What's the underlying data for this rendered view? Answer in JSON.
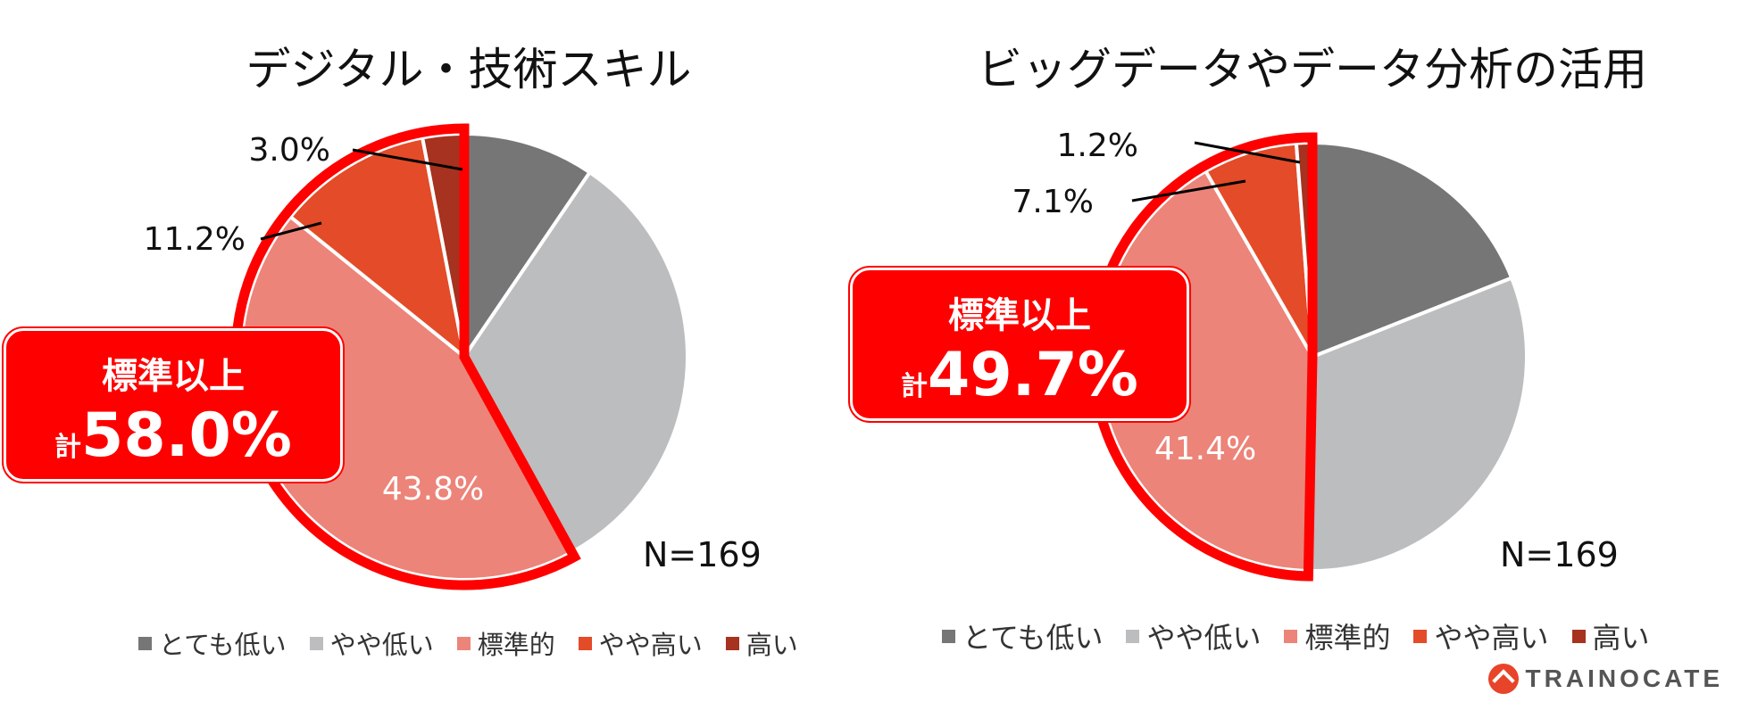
{
  "colors": {
    "very_low": "#767676",
    "low": "#bcbdbf",
    "standard": "#ec8479",
    "high": "#e44b28",
    "very_high": "#a6321f",
    "highlight": "#ff0000"
  },
  "legend": [
    "とても低い",
    "やや低い",
    "標準的",
    "やや高い",
    "高い"
  ],
  "logo_text": "TRAINOCATE",
  "chart_data": [
    {
      "type": "pie",
      "title": "デジタル・技術スキル",
      "categories": [
        "とても低い",
        "やや低い",
        "標準的",
        "やや高い",
        "高い"
      ],
      "values": [
        9.5,
        32.5,
        43.8,
        11.2,
        3.0
      ],
      "data_labels": [
        "",
        "",
        "43.8%",
        "11.2%",
        "3.0%"
      ],
      "n_label": "N=169",
      "callout": {
        "heading": "標準以上",
        "prefix": "計",
        "value": "58.0%"
      },
      "legend_position": "bottom"
    },
    {
      "type": "pie",
      "title": "ビッグデータやデータ分析の活用",
      "categories": [
        "とても低い",
        "やや低い",
        "標準的",
        "やや高い",
        "高い"
      ],
      "values": [
        19.0,
        31.3,
        41.4,
        7.1,
        1.2
      ],
      "data_labels": [
        "",
        "",
        "41.4%",
        "7.1%",
        "1.2%"
      ],
      "n_label": "N=169",
      "callout": {
        "heading": "標準以上",
        "prefix": "計",
        "value": "49.7%"
      },
      "legend_position": "bottom"
    }
  ]
}
